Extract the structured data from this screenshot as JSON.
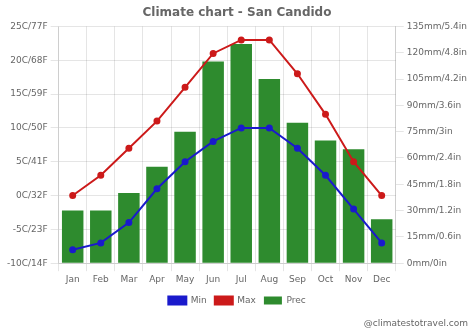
{
  "chart_data": {
    "type": "bar",
    "title": "Climate chart - San Candido",
    "categories": [
      "Jan",
      "Feb",
      "Mar",
      "Apr",
      "May",
      "Jun",
      "Jul",
      "Aug",
      "Sep",
      "Oct",
      "Nov",
      "Dec"
    ],
    "series": [
      {
        "name": "Prec",
        "type": "bar",
        "color": "#2e8b2e",
        "axis": "y2",
        "values": [
          30,
          30,
          40,
          55,
          75,
          115,
          125,
          105,
          80,
          70,
          65,
          25
        ]
      },
      {
        "name": "Min",
        "type": "line",
        "color": "#1a1acc",
        "marker": "circle",
        "values": [
          -8,
          -7,
          -4,
          1,
          5,
          8,
          10,
          10,
          7,
          3,
          -2,
          -7
        ]
      },
      {
        "name": "Max",
        "type": "line",
        "color": "#cc1a1a",
        "marker": "circle",
        "values": [
          0,
          3,
          7,
          11,
          16,
          21,
          23,
          23,
          18,
          12,
          5,
          0
        ]
      }
    ],
    "ylim": [
      -10,
      25
    ],
    "yticks": [
      {
        "value": -10,
        "label": "-10C/14F"
      },
      {
        "value": -5,
        "label": "-5C/23F"
      },
      {
        "value": 0,
        "label": "0C/32F"
      },
      {
        "value": 5,
        "label": "5C/41F"
      },
      {
        "value": 10,
        "label": "10C/50F"
      },
      {
        "value": 15,
        "label": "15C/59F"
      },
      {
        "value": 20,
        "label": "20C/68F"
      },
      {
        "value": 25,
        "label": "25C/77F"
      }
    ],
    "y2lim": [
      0,
      135
    ],
    "y2ticks": [
      {
        "value": 0,
        "label": "0mm/0in"
      },
      {
        "value": 15,
        "label": "15mm/0.6in"
      },
      {
        "value": 30,
        "label": "30mm/1.2in"
      },
      {
        "value": 45,
        "label": "45mm/1.8in"
      },
      {
        "value": 60,
        "label": "60mm/2.4in"
      },
      {
        "value": 75,
        "label": "75mm/3in"
      },
      {
        "value": 90,
        "label": "90mm/3.6in"
      },
      {
        "value": 105,
        "label": "105mm/4.2in"
      },
      {
        "value": 120,
        "label": "120mm/4.8in"
      },
      {
        "value": 135,
        "label": "135mm/5.4in"
      }
    ],
    "grid": true,
    "legend": "bottom",
    "annotations": [
      "@climatestotravel.com"
    ]
  }
}
